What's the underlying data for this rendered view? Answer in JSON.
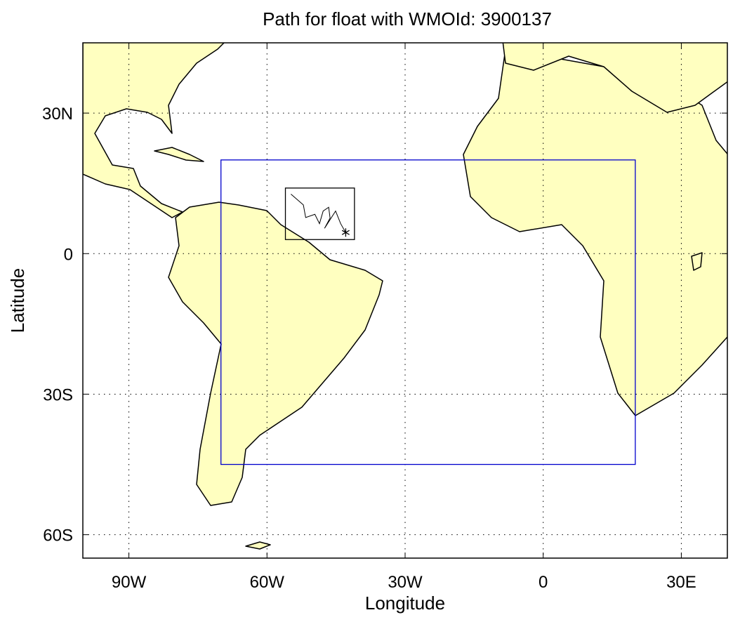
{
  "title": "Path for float with WMOId: 3900137",
  "x_label": "Longitude",
  "y_label": "Latitude",
  "xlim": [
    -100,
    40
  ],
  "ylim": [
    -65,
    45
  ],
  "xticks": [
    {
      "value": -90,
      "label": "90W"
    },
    {
      "value": -60,
      "label": "60W"
    },
    {
      "value": -30,
      "label": "30W"
    },
    0,
    {
      "value": 30,
      "label": "30E"
    }
  ],
  "yticks": [
    {
      "value": 30,
      "label": "30N"
    },
    0,
    {
      "value": -30,
      "label": "30S"
    },
    {
      "value": -60,
      "label": "60S"
    }
  ],
  "region": {
    "lon": [
      -70,
      20
    ],
    "lat": [
      -45,
      20
    ]
  },
  "float_box": {
    "lon": [
      -56,
      -41
    ],
    "lat": [
      3,
      14
    ]
  },
  "float_path": {
    "lon": [
      -54.8,
      -52.1,
      -51.6,
      -49.6,
      -48.6,
      -47.8,
      -46.6,
      -46.3,
      -47.5,
      -45.1,
      -44.0,
      -42.9
    ],
    "lat": [
      12.7,
      10.4,
      7.7,
      8.4,
      6.4,
      9.1,
      9.9,
      7.6,
      5.4,
      9.1,
      6.4,
      4.5
    ]
  },
  "last_position": {
    "lon": -42.9,
    "lat": 4.5
  }
}
